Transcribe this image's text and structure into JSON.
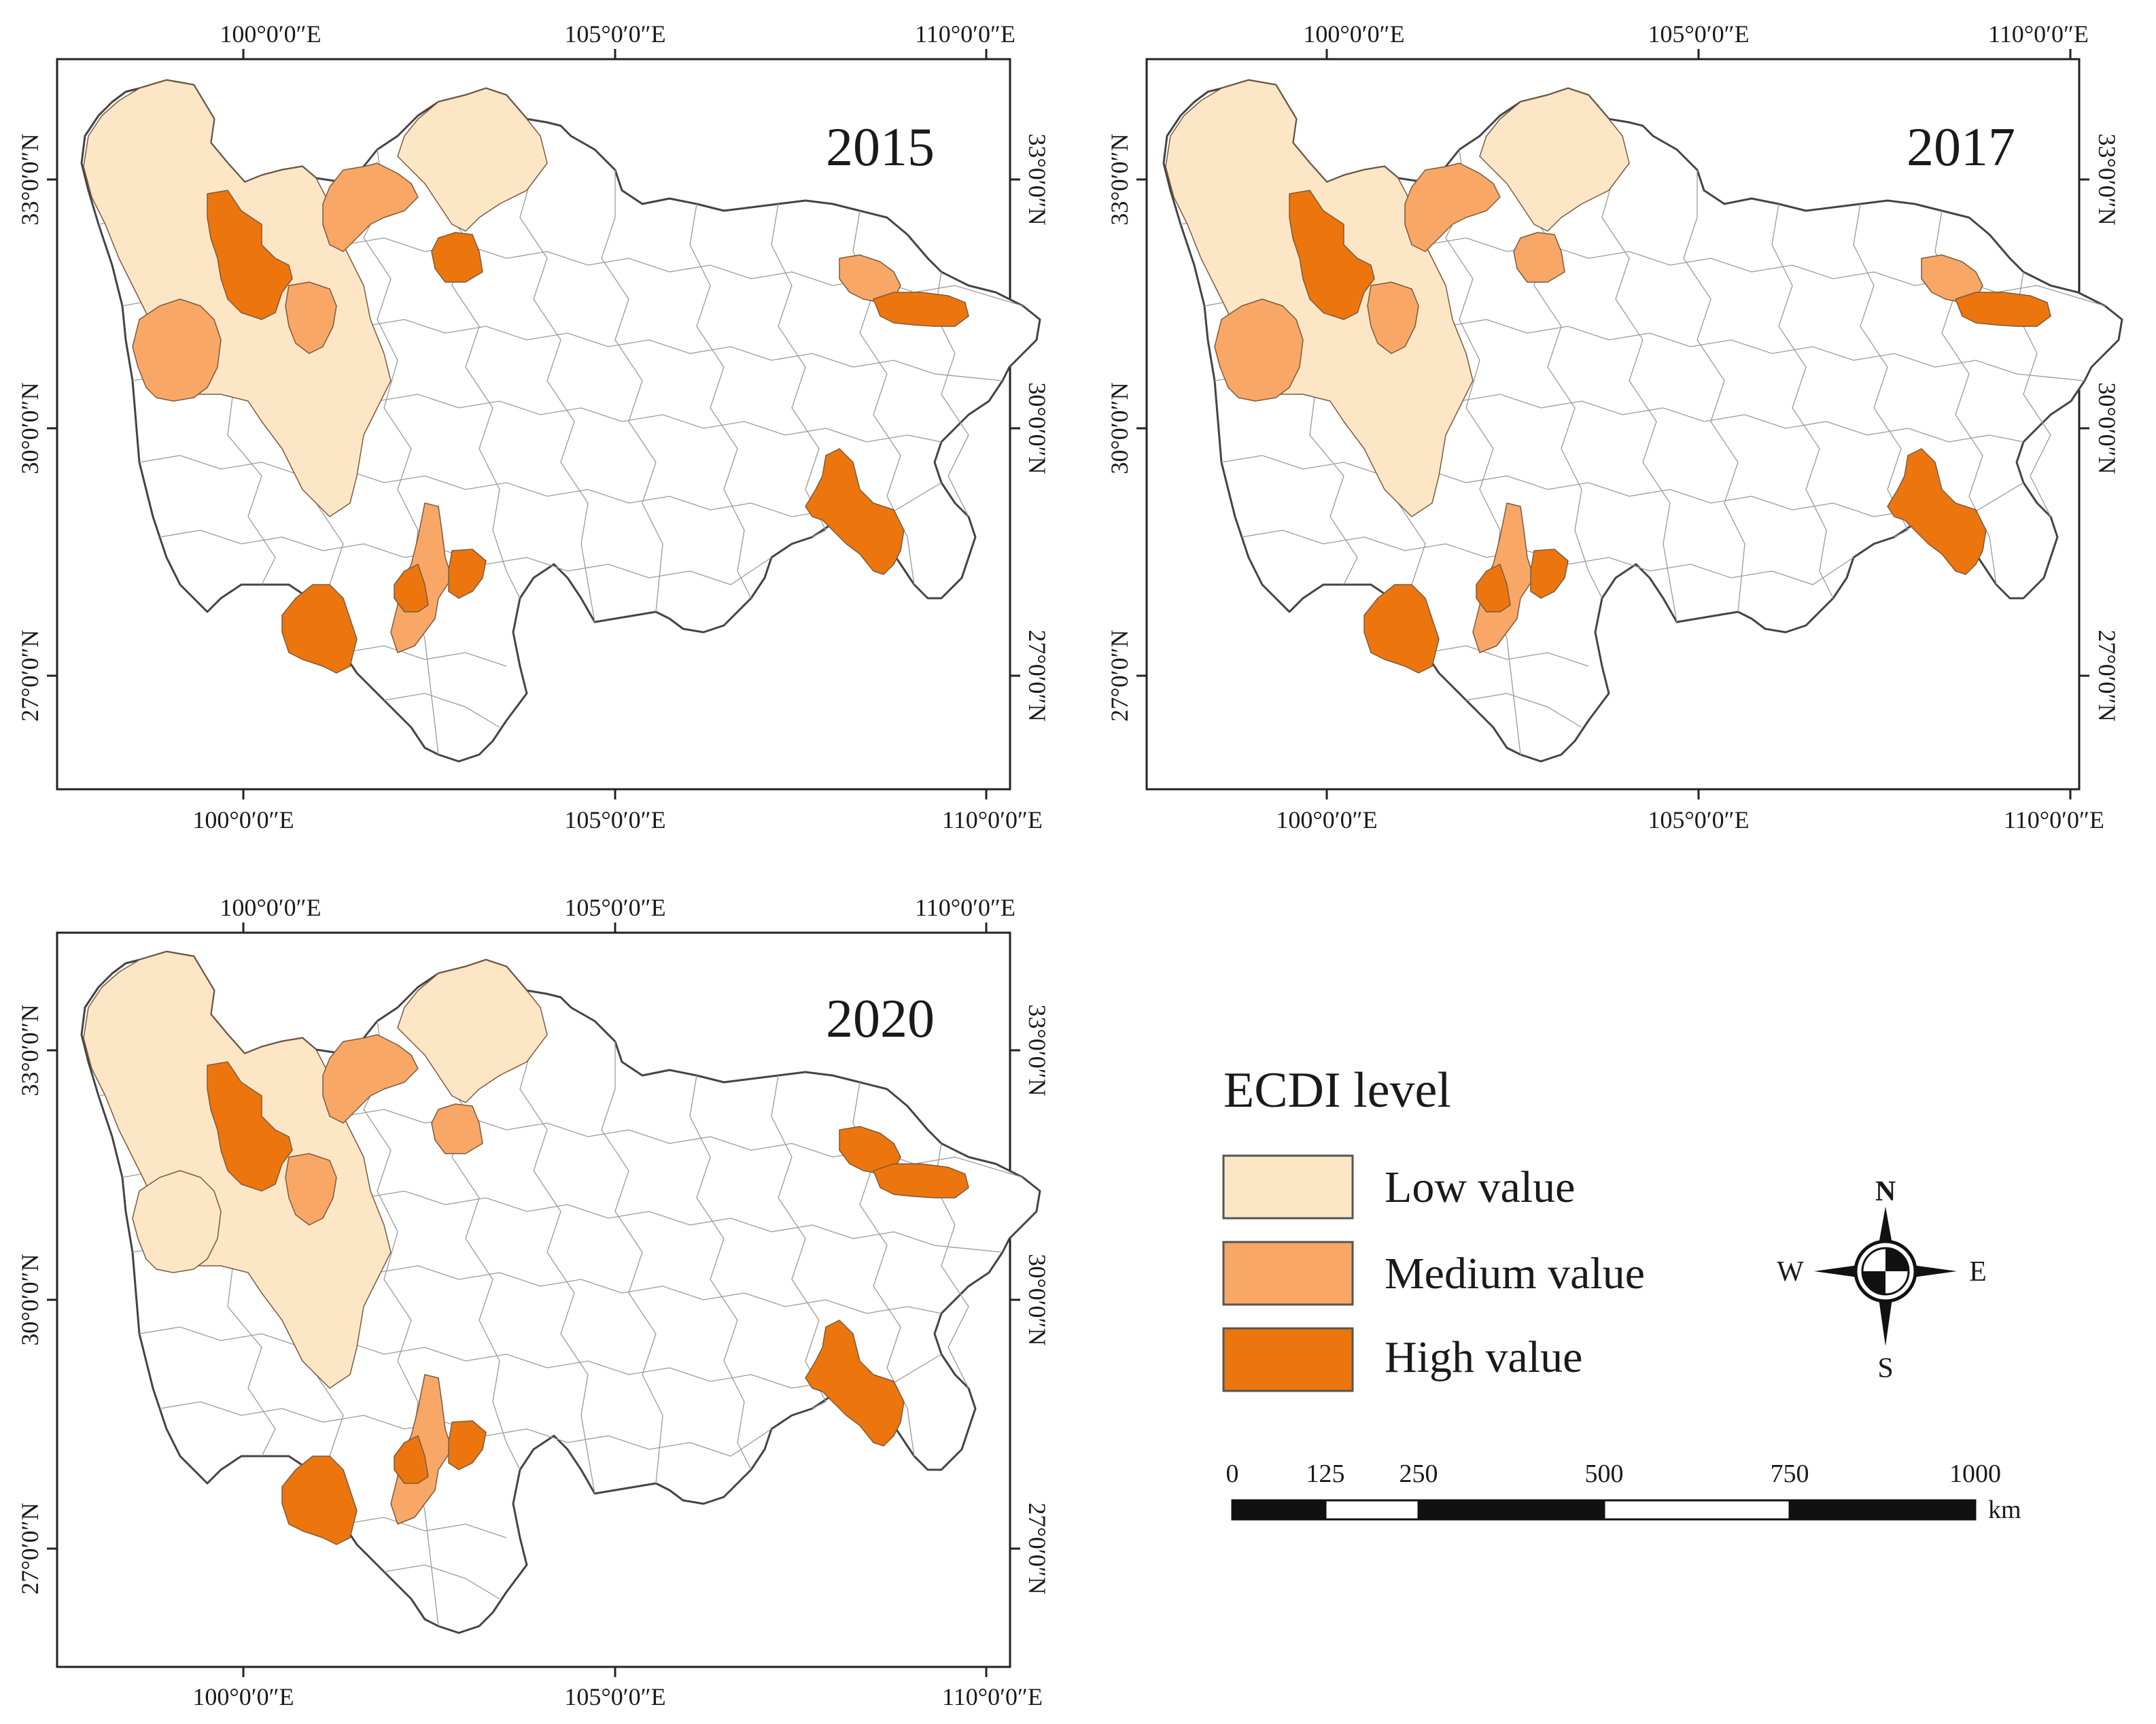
{
  "maps": [
    {
      "year": "2015",
      "top_lon_labels": [
        "100°0′0″E",
        "105°0′0″E",
        "110°0′0″E"
      ],
      "bottom_lon_labels": [
        "100°0′0″E",
        "105°0′0″E",
        "110°0′0″E"
      ],
      "left_lat_labels": [
        "33°0′0″N",
        "30°0′0″N",
        "27°0′0″N"
      ],
      "right_lat_labels": [
        "33°0′0″N",
        "30°0′0″N",
        "27°0′0″N"
      ],
      "regions": [
        {
          "area": "northwest plateau",
          "level": "low"
        },
        {
          "area": "north-central upper",
          "level": "low"
        },
        {
          "area": "west-central A",
          "level": "high"
        },
        {
          "area": "west B",
          "level": "medium"
        },
        {
          "area": "west-central C",
          "level": "medium"
        },
        {
          "area": "north-central D",
          "level": "medium"
        },
        {
          "area": "north-central E",
          "level": "high"
        },
        {
          "area": "east F",
          "level": "medium"
        },
        {
          "area": "east G",
          "level": "high"
        },
        {
          "area": "southeast H",
          "level": "high"
        },
        {
          "area": "south I",
          "level": "high"
        },
        {
          "area": "south-central J",
          "level": "medium"
        },
        {
          "area": "south-central K",
          "level": "high"
        },
        {
          "area": "south-central L",
          "level": "high"
        }
      ]
    },
    {
      "year": "2017",
      "top_lon_labels": [
        "100°0′0″E",
        "105°0′0″E",
        "110°0′0″E"
      ],
      "bottom_lon_labels": [
        "100°0′0″E",
        "105°0′0″E",
        "110°0′0″E"
      ],
      "left_lat_labels": [
        "33°0′0″N",
        "30°0′0″N",
        "27°0′0″N"
      ],
      "right_lat_labels": [
        "33°0′0″N",
        "30°0′0″N",
        "27°0′0″N"
      ],
      "regions": [
        {
          "area": "northwest plateau",
          "level": "low"
        },
        {
          "area": "north-central upper",
          "level": "low"
        },
        {
          "area": "west-central A",
          "level": "high"
        },
        {
          "area": "west B",
          "level": "medium"
        },
        {
          "area": "west-central C",
          "level": "medium"
        },
        {
          "area": "north-central D",
          "level": "medium"
        },
        {
          "area": "north-central E",
          "level": "medium"
        },
        {
          "area": "east F",
          "level": "medium"
        },
        {
          "area": "east G",
          "level": "high"
        },
        {
          "area": "southeast H",
          "level": "high"
        },
        {
          "area": "south I",
          "level": "high"
        },
        {
          "area": "south-central J",
          "level": "medium"
        },
        {
          "area": "south-central K",
          "level": "high"
        },
        {
          "area": "south-central L",
          "level": "high"
        }
      ]
    },
    {
      "year": "2020",
      "top_lon_labels": [
        "100°0′0″E",
        "105°0′0″E",
        "110°0′0″E"
      ],
      "bottom_lon_labels": [
        "100°0′0″E",
        "105°0′0″E",
        "110°0′0″E"
      ],
      "left_lat_labels": [
        "33°0′0″N",
        "30°0′0″N",
        "27°0′0″N"
      ],
      "right_lat_labels": [
        "33°0′0″N",
        "30°0′0″N",
        "27°0′0″N"
      ],
      "regions": [
        {
          "area": "northwest plateau",
          "level": "low"
        },
        {
          "area": "north-central upper",
          "level": "low"
        },
        {
          "area": "west-central A",
          "level": "high"
        },
        {
          "area": "west B",
          "level": "low"
        },
        {
          "area": "west-central C",
          "level": "medium"
        },
        {
          "area": "north-central D",
          "level": "medium"
        },
        {
          "area": "north-central E",
          "level": "medium"
        },
        {
          "area": "east F",
          "level": "high"
        },
        {
          "area": "east G",
          "level": "high"
        },
        {
          "area": "southeast H",
          "level": "high"
        },
        {
          "area": "south I",
          "level": "high"
        },
        {
          "area": "south-central J",
          "level": "medium"
        },
        {
          "area": "south-central K",
          "level": "high"
        },
        {
          "area": "south-central L",
          "level": "high"
        }
      ]
    }
  ],
  "legend": {
    "title": "ECDI level",
    "items": [
      {
        "key": "low",
        "label": "Low value",
        "color": "#fde6c6"
      },
      {
        "key": "medium",
        "label": "Medium value",
        "color": "#f9a766"
      },
      {
        "key": "high",
        "label": "High value",
        "color": "#ec760d"
      }
    ]
  },
  "compass": {
    "n": "N",
    "s": "S",
    "e": "E",
    "w": "W"
  },
  "scale_bar": {
    "ticks": [
      "0",
      "125",
      "250",
      "500",
      "750",
      "1000"
    ],
    "unit": "km"
  },
  "colors": {
    "outline": "#444444",
    "county_lines": "#9a9a9a",
    "background": "#ffffff"
  }
}
